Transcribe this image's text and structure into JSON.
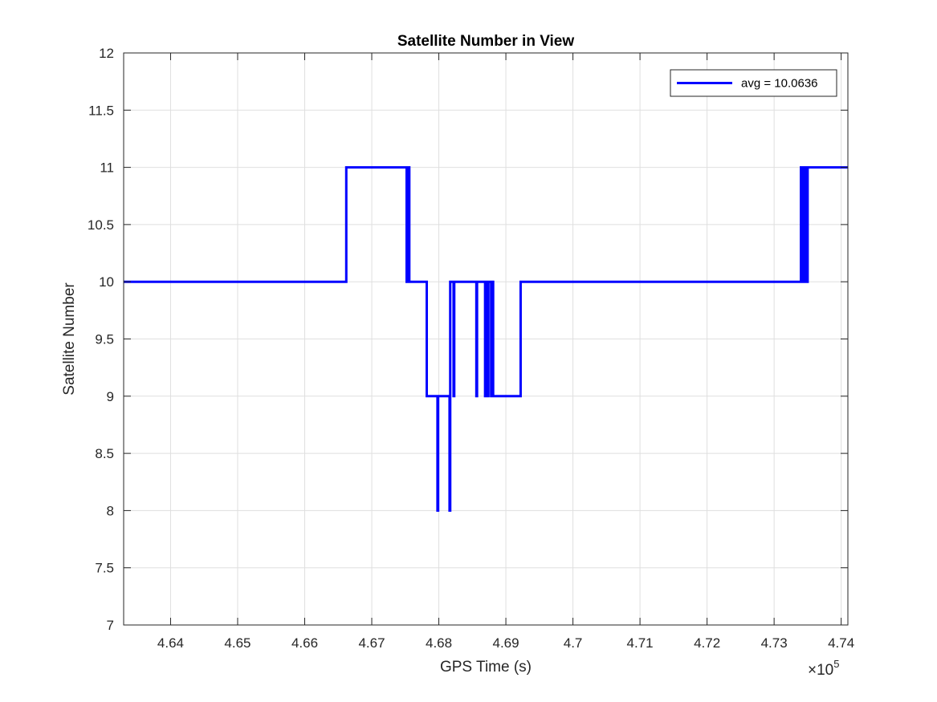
{
  "chart_data": {
    "type": "line",
    "title": "Satellite Number in View",
    "xlabel": "GPS Time (s)",
    "ylabel": "Satellite Number",
    "x_exponent_label": "×10",
    "x_exponent_power": "5",
    "xlim": [
      4.633,
      4.741
    ],
    "ylim": [
      7,
      12
    ],
    "x_ticks": [
      4.64,
      4.65,
      4.66,
      4.67,
      4.68,
      4.69,
      4.7,
      4.71,
      4.72,
      4.73,
      4.74
    ],
    "x_tick_labels": [
      "4.64",
      "4.65",
      "4.66",
      "4.67",
      "4.68",
      "4.69",
      "4.7",
      "4.71",
      "4.72",
      "4.73",
      "4.74"
    ],
    "y_ticks": [
      7,
      7.5,
      8,
      8.5,
      9,
      9.5,
      10,
      10.5,
      11,
      11.5,
      12
    ],
    "y_tick_labels": [
      "7",
      "7.5",
      "8",
      "8.5",
      "9",
      "9.5",
      "10",
      "10.5",
      "11",
      "11.5",
      "12"
    ],
    "grid": true,
    "legend_position": "top-right",
    "series": [
      {
        "name": "avg = 10.0636",
        "color": "#0000ff",
        "points": [
          [
            4.633,
            10
          ],
          [
            4.6662,
            10
          ],
          [
            4.6662,
            11
          ],
          [
            4.6752,
            11
          ],
          [
            4.6752,
            10
          ],
          [
            4.6753,
            10
          ],
          [
            4.6753,
            11
          ],
          [
            4.6754,
            11
          ],
          [
            4.6754,
            10
          ],
          [
            4.6755,
            10
          ],
          [
            4.6755,
            11
          ],
          [
            4.6756,
            11
          ],
          [
            4.6756,
            10
          ],
          [
            4.6782,
            10
          ],
          [
            4.6782,
            9
          ],
          [
            4.6798,
            9
          ],
          [
            4.6798,
            8
          ],
          [
            4.6799,
            8
          ],
          [
            4.6799,
            9
          ],
          [
            4.6816,
            9
          ],
          [
            4.6816,
            8
          ],
          [
            4.6817,
            8
          ],
          [
            4.6817,
            10
          ],
          [
            4.6822,
            10
          ],
          [
            4.6822,
            9
          ],
          [
            4.6823,
            9
          ],
          [
            4.6823,
            10
          ],
          [
            4.6856,
            10
          ],
          [
            4.6856,
            9
          ],
          [
            4.6857,
            9
          ],
          [
            4.6857,
            10
          ],
          [
            4.6869,
            10
          ],
          [
            4.6869,
            9
          ],
          [
            4.687,
            9
          ],
          [
            4.687,
            10
          ],
          [
            4.6873,
            10
          ],
          [
            4.6873,
            9
          ],
          [
            4.6874,
            9
          ],
          [
            4.6874,
            10
          ],
          [
            4.6878,
            10
          ],
          [
            4.6878,
            9
          ],
          [
            4.6879,
            9
          ],
          [
            4.6879,
            10
          ],
          [
            4.6881,
            10
          ],
          [
            4.6881,
            9
          ],
          [
            4.6922,
            9
          ],
          [
            4.6922,
            10
          ],
          [
            4.734,
            10
          ],
          [
            4.734,
            11
          ],
          [
            4.7341,
            11
          ],
          [
            4.7341,
            10
          ],
          [
            4.7342,
            10
          ],
          [
            4.7342,
            11
          ],
          [
            4.7343,
            11
          ],
          [
            4.7343,
            10
          ],
          [
            4.7344,
            10
          ],
          [
            4.7344,
            11
          ],
          [
            4.7345,
            11
          ],
          [
            4.7345,
            10
          ],
          [
            4.7346,
            10
          ],
          [
            4.7346,
            11
          ],
          [
            4.7347,
            11
          ],
          [
            4.7347,
            10
          ],
          [
            4.7348,
            10
          ],
          [
            4.7348,
            11
          ],
          [
            4.7349,
            11
          ],
          [
            4.7349,
            10
          ],
          [
            4.735,
            10
          ],
          [
            4.735,
            11
          ],
          [
            4.741,
            11
          ]
        ]
      }
    ]
  }
}
